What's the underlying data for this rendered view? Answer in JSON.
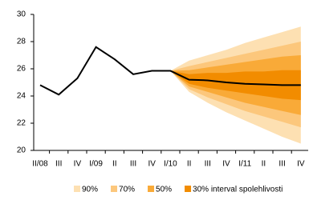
{
  "chart_data": {
    "type": "fan",
    "categories": [
      "II/08",
      "III",
      "IV",
      "I/09",
      "II",
      "III",
      "IV",
      "I/10",
      "II",
      "III",
      "IV",
      "I/11",
      "II",
      "III",
      "IV"
    ],
    "values": [
      24.8,
      24.1,
      25.3,
      27.6,
      26.7,
      25.6,
      25.85,
      25.85,
      25.2,
      25.15,
      25.0,
      24.9,
      24.85,
      24.8,
      24.8
    ],
    "color": "#000000",
    "bands": [
      {
        "name": "90%",
        "color": "#fde0b2",
        "upper": [
          null,
          null,
          null,
          null,
          null,
          null,
          null,
          25.85,
          26.6,
          27.0,
          27.4,
          27.9,
          28.3,
          28.7,
          29.1
        ],
        "lower": [
          null,
          null,
          null,
          null,
          null,
          null,
          null,
          25.85,
          24.3,
          23.5,
          22.8,
          22.2,
          21.6,
          21.0,
          20.5
        ]
      },
      {
        "name": "70%",
        "color": "#fcc77c",
        "upper": [
          null,
          null,
          null,
          null,
          null,
          null,
          null,
          25.85,
          26.2,
          26.5,
          26.8,
          27.1,
          27.4,
          27.7,
          28.0
        ],
        "lower": [
          null,
          null,
          null,
          null,
          null,
          null,
          null,
          25.85,
          24.5,
          23.9,
          23.4,
          22.9,
          22.5,
          22.1,
          21.7
        ]
      },
      {
        "name": "50%",
        "color": "#f9aa38",
        "upper": [
          null,
          null,
          null,
          null,
          null,
          null,
          null,
          25.85,
          25.9,
          26.1,
          26.3,
          26.5,
          26.7,
          26.9,
          27.0
        ],
        "lower": [
          null,
          null,
          null,
          null,
          null,
          null,
          null,
          25.85,
          24.7,
          24.3,
          23.9,
          23.5,
          23.2,
          22.9,
          22.6
        ]
      },
      {
        "name": "30% interval spolehlivosti",
        "color": "#f28c00",
        "upper": [
          null,
          null,
          null,
          null,
          null,
          null,
          null,
          25.85,
          25.6,
          25.7,
          25.7,
          25.8,
          25.8,
          25.9,
          25.9
        ],
        "lower": [
          null,
          null,
          null,
          null,
          null,
          null,
          null,
          25.85,
          24.9,
          24.6,
          24.4,
          24.2,
          24.0,
          23.8,
          23.7
        ]
      }
    ],
    "ylim": [
      20,
      30
    ],
    "yticks": [
      20,
      22,
      24,
      26,
      28,
      30
    ],
    "grid": false
  }
}
